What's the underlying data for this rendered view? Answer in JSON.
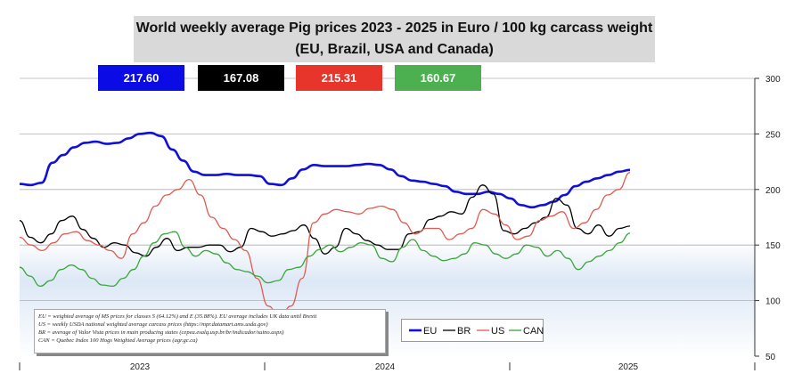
{
  "title": {
    "line1": "World weekly average Pig prices 2023 - 2025  in Euro / 100 kg carcass weight",
    "line2": "(EU, Brazil, USA and Canada)"
  },
  "badges": [
    {
      "value": "217.60",
      "color": "#0b0be6"
    },
    {
      "value": "167.08",
      "color": "#000000"
    },
    {
      "value": "215.31",
      "color": "#e8352b"
    },
    {
      "value": "160.67",
      "color": "#4caf50"
    }
  ],
  "notes": [
    "EU    = weighted average of MS prices for classes S (64.12%) and E (35.88%). EU average includes UK data   until Brexit",
    "US    = weekly USDA national weighted average carcass prices (https://mpr.datamart.ams.usda.gov)",
    "BR    = average of Valor Vista prices in main producing states (cepea.esalq.usp.br/br/indicador/suino.aspx)",
    "CAN = Quebec Index 100 Hogs Weighted Average prices (agr.gc.ca)"
  ],
  "chart_data": {
    "type": "line",
    "x_tick_labels": [
      "2023",
      "2024",
      "2025"
    ],
    "ylim": [
      50,
      300
    ],
    "y_ticks": [
      50,
      100,
      150,
      200,
      250,
      300
    ],
    "y_axis_position": "right",
    "grid": true,
    "legend_position": "bottom-center",
    "series": [
      {
        "name": "EU",
        "color": "#1010d8",
        "values": [
          205,
          204,
          206,
          224,
          231,
          238,
          242,
          243,
          241,
          242,
          246,
          250,
          251,
          248,
          236,
          226,
          216,
          213,
          213,
          214,
          213,
          213,
          212,
          205,
          204,
          210,
          218,
          222,
          221,
          221,
          221,
          222,
          223,
          222,
          218,
          212,
          208,
          207,
          205,
          203,
          198,
          196,
          196,
          198,
          196,
          192,
          186,
          184,
          186,
          189,
          195,
          203,
          207,
          210,
          213,
          216,
          217.6
        ]
      },
      {
        "name": "BR",
        "color": "#000000",
        "values": [
          172,
          157,
          152,
          160,
          172,
          176,
          164,
          156,
          148,
          152,
          150,
          143,
          140,
          148,
          156,
          145,
          148,
          148,
          150,
          150,
          144,
          148,
          165,
          162,
          158,
          160,
          163,
          168,
          156,
          142,
          148,
          165,
          160,
          154,
          150,
          146,
          146,
          160,
          162,
          173,
          176,
          180,
          178,
          193,
          204,
          196,
          163,
          160,
          165,
          170,
          175,
          192,
          186,
          165,
          160,
          168,
          158,
          165,
          167.08
        ]
      },
      {
        "name": "US",
        "color": "#e05a50",
        "values": [
          157,
          150,
          145,
          152,
          160,
          162,
          154,
          150,
          145,
          138,
          160,
          170,
          185,
          195,
          200,
          209,
          195,
          175,
          165,
          155,
          145,
          120,
          95,
          85,
          95,
          120,
          170,
          178,
          182,
          180,
          178,
          183,
          185,
          182,
          170,
          160,
          165,
          165,
          155,
          160,
          165,
          182,
          178,
          168,
          155,
          158,
          172,
          176,
          180,
          165,
          170,
          182,
          195,
          200,
          215.31
        ]
      },
      {
        "name": "CAN",
        "color": "#3aa63a",
        "values": [
          130,
          122,
          113,
          118,
          128,
          132,
          128,
          120,
          114,
          113,
          120,
          128,
          140,
          152,
          160,
          162,
          148,
          140,
          145,
          142,
          134,
          128,
          126,
          122,
          116,
          118,
          128,
          130,
          140,
          146,
          150,
          144,
          148,
          152,
          150,
          138,
          135,
          148,
          155,
          145,
          140,
          136,
          138,
          142,
          152,
          150,
          142,
          138,
          142,
          150,
          148,
          140,
          145,
          138,
          128,
          135,
          140,
          145,
          152,
          160.67
        ]
      }
    ]
  }
}
